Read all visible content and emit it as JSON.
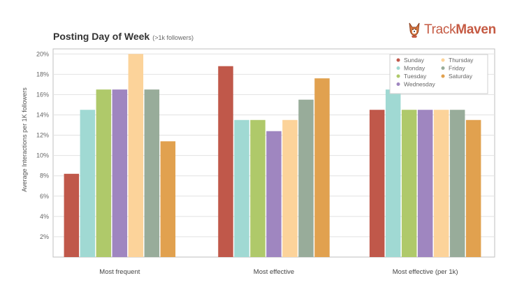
{
  "header": {
    "title": "Posting Day of Week",
    "subtitle": "(>1k followers)",
    "brand_light": "Track",
    "brand_bold": "Maven",
    "brand_color": "#c55a43",
    "brand_icon": "corgi-dog-icon"
  },
  "chart_data": {
    "type": "bar",
    "ylabel": "Average Interactions per 1K followers",
    "xlabel": "",
    "ylim": [
      0,
      20.5
    ],
    "yticks": [
      2,
      4,
      6,
      8,
      10,
      12,
      14,
      16,
      18,
      20
    ],
    "ytick_labels": [
      "2%",
      "4%",
      "6%",
      "8%",
      "10%",
      "12%",
      "14%",
      "16%",
      "18%",
      "20%"
    ],
    "categories": [
      "Most frequent",
      "Most effective",
      "Most effective (per 1k)"
    ],
    "grid": true,
    "legend_position": "top-right",
    "series": [
      {
        "name": "Sunday",
        "color": "#c0584a",
        "values": [
          8.2,
          18.8,
          14.5
        ]
      },
      {
        "name": "Monday",
        "color": "#a0d9d3",
        "values": [
          14.5,
          13.5,
          16.5
        ]
      },
      {
        "name": "Tuesday",
        "color": "#afc96a",
        "values": [
          16.5,
          13.5,
          14.5
        ]
      },
      {
        "name": "Wednesday",
        "color": "#9f86c0",
        "values": [
          16.5,
          12.4,
          14.5
        ]
      },
      {
        "name": "Thursday",
        "color": "#fcd39a",
        "values": [
          20.0,
          13.5,
          14.5
        ]
      },
      {
        "name": "Friday",
        "color": "#98ac9a",
        "values": [
          16.5,
          15.5,
          14.5
        ]
      },
      {
        "name": "Saturday",
        "color": "#e1a14f",
        "values": [
          11.4,
          17.6,
          13.5
        ]
      }
    ]
  }
}
